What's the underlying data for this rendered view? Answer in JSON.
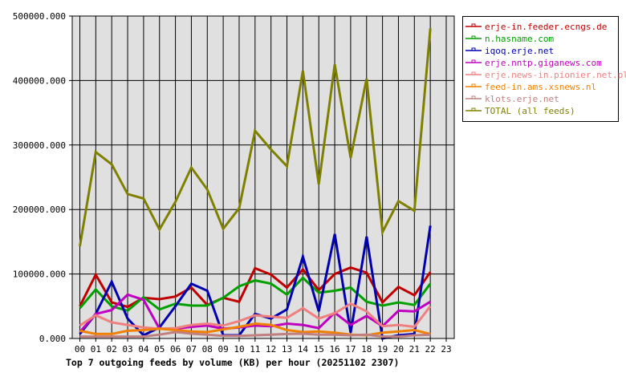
{
  "chart_data": {
    "type": "line",
    "title": "Top 7 outgoing feeds by volume (KB) per hour (20251102 2307)",
    "xlabel": "",
    "ylabel": "",
    "ylim": [
      0,
      500000
    ],
    "y_ticks": [
      "0.000",
      "100000.000",
      "200000.000",
      "300000.000",
      "400000.000",
      "500000.000"
    ],
    "y_tick_values": [
      0,
      100000,
      200000,
      300000,
      400000,
      500000
    ],
    "categories": [
      "00",
      "01",
      "02",
      "03",
      "04",
      "05",
      "06",
      "07",
      "08",
      "09",
      "10",
      "11",
      "12",
      "13",
      "14",
      "15",
      "16",
      "17",
      "18",
      "19",
      "20",
      "21",
      "22",
      "23"
    ],
    "grid": true,
    "legend_position": "right",
    "series": [
      {
        "name": "erje-in.feeder.ecngs.de",
        "color": "#c00000",
        "values": [
          50000,
          99000,
          56000,
          49000,
          63000,
          61000,
          65000,
          79000,
          52000,
          63000,
          57000,
          109000,
          99000,
          79000,
          107000,
          75000,
          100000,
          110000,
          102000,
          56000,
          80000,
          67000,
          103000
        ]
      },
      {
        "name": "n.hasname.com",
        "color": "#00a000",
        "values": [
          47000,
          76000,
          50000,
          43000,
          64000,
          45000,
          54000,
          51000,
          51000,
          63000,
          81000,
          90000,
          85000,
          68000,
          94000,
          71000,
          74000,
          79000,
          57000,
          51000,
          56000,
          52000,
          85000
        ]
      },
      {
        "name": "iqoq.erje.net",
        "color": "#0000b0",
        "values": [
          7000,
          38000,
          88000,
          31000,
          5000,
          17000,
          50000,
          85000,
          74000,
          5000,
          5000,
          38000,
          31000,
          45000,
          127000,
          42000,
          162000,
          9000,
          158000,
          0,
          5000,
          7000,
          175000
        ]
      },
      {
        "name": "erje.nntp.giganews.com",
        "color": "#c000c0",
        "values": [
          10000,
          38000,
          44000,
          68000,
          60000,
          15000,
          15000,
          18000,
          20000,
          15000,
          17000,
          20000,
          19000,
          23000,
          21000,
          16000,
          40000,
          21000,
          35000,
          19000,
          43000,
          42000,
          57000
        ]
      },
      {
        "name": "erje.news-in.pionier.net.pl",
        "color": "#f08080",
        "values": [
          20000,
          36000,
          25000,
          21000,
          17000,
          15000,
          16000,
          21000,
          23000,
          20000,
          27000,
          36000,
          34000,
          32000,
          47000,
          31000,
          39000,
          54000,
          42000,
          19000,
          21000,
          18000,
          50000
        ]
      },
      {
        "name": "feed-in.ams.xsnews.nl",
        "color": "#f08000",
        "values": [
          12000,
          7000,
          7000,
          12000,
          13000,
          15000,
          13000,
          11000,
          10000,
          14000,
          18000,
          23000,
          21000,
          13000,
          10000,
          11000,
          9000,
          6000,
          5000,
          9000,
          11000,
          13000,
          7000
        ]
      },
      {
        "name": "klots.erje.net",
        "color": "#c08080",
        "values": [
          3000,
          3000,
          3000,
          3000,
          3000,
          6000,
          10000,
          7500,
          6000,
          4000,
          4000,
          5000,
          6000,
          7000,
          7500,
          6000,
          6000,
          5000,
          6000,
          3000,
          3000,
          5000,
          6000
        ]
      },
      {
        "name": "TOTAL (all feeds)",
        "color": "#808000",
        "values": [
          143000,
          289000,
          270000,
          224000,
          217000,
          169000,
          212000,
          265000,
          231000,
          170000,
          202000,
          322000,
          293000,
          267000,
          415000,
          239000,
          425000,
          280000,
          403000,
          165000,
          213000,
          198000,
          481000
        ]
      }
    ]
  },
  "legend": {
    "items": [
      {
        "label": "erje-in.feeder.ecngs.de",
        "color": "#c00000"
      },
      {
        "label": "n.hasname.com",
        "color": "#00a000"
      },
      {
        "label": "iqoq.erje.net",
        "color": "#0000b0"
      },
      {
        "label": "erje.nntp.giganews.com",
        "color": "#c000c0"
      },
      {
        "label": "erje.news-in.pionier.net.pl",
        "color": "#f08080"
      },
      {
        "label": "feed-in.ams.xsnews.nl",
        "color": "#f08000"
      },
      {
        "label": "klots.erje.net",
        "color": "#c08080"
      },
      {
        "label": "TOTAL (all feeds)",
        "color": "#808000"
      }
    ]
  },
  "style": {
    "plot_background": "#e0e0e0",
    "grid_color": "#000000",
    "frame_color": "#000000"
  }
}
